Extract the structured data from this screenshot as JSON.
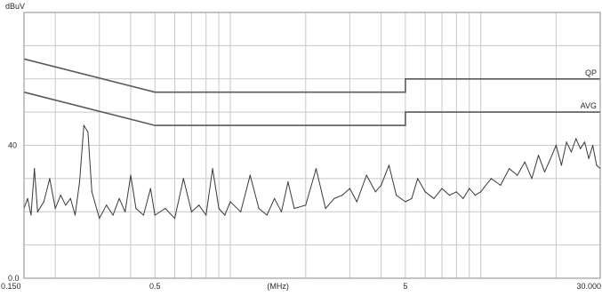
{
  "chart_data": {
    "type": "line",
    "title": "",
    "ylabel": "dBuV",
    "xlabel": "(MHz)",
    "x_scale": "log",
    "xlim": [
      0.15,
      30
    ],
    "ylim": [
      0,
      80
    ],
    "grid": true,
    "x_tick_labels": [
      {
        "x": 0.15,
        "label": "0.150"
      },
      {
        "x": 0.5,
        "label": "0.5"
      },
      {
        "x": 5,
        "label": "5"
      },
      {
        "x": 30,
        "label": "30.000"
      }
    ],
    "x_unit_label_position_mhz": 1.55,
    "y_tick_labels": [
      {
        "y": 0,
        "label": "0.0"
      },
      {
        "y": 40,
        "label": "40"
      }
    ],
    "limit_lines": [
      {
        "name": "QP",
        "points": [
          [
            0.15,
            66
          ],
          [
            0.5,
            56
          ],
          [
            5,
            56
          ],
          [
            5,
            60
          ],
          [
            30,
            60
          ]
        ]
      },
      {
        "name": "AVG",
        "points": [
          [
            0.15,
            56
          ],
          [
            0.5,
            46
          ],
          [
            5,
            46
          ],
          [
            5,
            50
          ],
          [
            30,
            50
          ]
        ]
      }
    ],
    "colors": {
      "limit": "#5a5a5a",
      "trace": "#3a3a3a",
      "grid": "#c8c8c8",
      "frame": "#8a8a8a"
    },
    "series": [
      {
        "values": [
          [
            0.15,
            21
          ],
          [
            0.155,
            24
          ],
          [
            0.16,
            19
          ],
          [
            0.165,
            33
          ],
          [
            0.17,
            20
          ],
          [
            0.18,
            23
          ],
          [
            0.19,
            30
          ],
          [
            0.2,
            21
          ],
          [
            0.21,
            25
          ],
          [
            0.22,
            22
          ],
          [
            0.23,
            24
          ],
          [
            0.24,
            19
          ],
          [
            0.25,
            29
          ],
          [
            0.26,
            46
          ],
          [
            0.27,
            44
          ],
          [
            0.28,
            26
          ],
          [
            0.3,
            18
          ],
          [
            0.32,
            22
          ],
          [
            0.34,
            19
          ],
          [
            0.36,
            24
          ],
          [
            0.38,
            20
          ],
          [
            0.4,
            31
          ],
          [
            0.42,
            21
          ],
          [
            0.45,
            19
          ],
          [
            0.48,
            27
          ],
          [
            0.5,
            19
          ],
          [
            0.55,
            21
          ],
          [
            0.6,
            18
          ],
          [
            0.65,
            30
          ],
          [
            0.7,
            20
          ],
          [
            0.75,
            22
          ],
          [
            0.8,
            19
          ],
          [
            0.85,
            33
          ],
          [
            0.9,
            21
          ],
          [
            0.95,
            19
          ],
          [
            1.0,
            23
          ],
          [
            1.1,
            20
          ],
          [
            1.2,
            31
          ],
          [
            1.3,
            21
          ],
          [
            1.4,
            19
          ],
          [
            1.5,
            24
          ],
          [
            1.6,
            20
          ],
          [
            1.7,
            29
          ],
          [
            1.8,
            21
          ],
          [
            2.0,
            22
          ],
          [
            2.2,
            33
          ],
          [
            2.4,
            21
          ],
          [
            2.6,
            24
          ],
          [
            2.8,
            25
          ],
          [
            3.0,
            27
          ],
          [
            3.2,
            23
          ],
          [
            3.5,
            31
          ],
          [
            3.8,
            26
          ],
          [
            4.0,
            28
          ],
          [
            4.3,
            34
          ],
          [
            4.6,
            25
          ],
          [
            5.0,
            23
          ],
          [
            5.3,
            24
          ],
          [
            5.6,
            30
          ],
          [
            6.0,
            26
          ],
          [
            6.5,
            24
          ],
          [
            7.0,
            27
          ],
          [
            7.5,
            25
          ],
          [
            8.0,
            26
          ],
          [
            8.5,
            24
          ],
          [
            9.0,
            27
          ],
          [
            9.5,
            25
          ],
          [
            10.0,
            26
          ],
          [
            11.0,
            30
          ],
          [
            12.0,
            28
          ],
          [
            13.0,
            33
          ],
          [
            14.0,
            31
          ],
          [
            15.0,
            35
          ],
          [
            16.0,
            30
          ],
          [
            17.0,
            37
          ],
          [
            18.0,
            32
          ],
          [
            19.0,
            36
          ],
          [
            20.0,
            40
          ],
          [
            21.0,
            34
          ],
          [
            22.0,
            41
          ],
          [
            23.0,
            38
          ],
          [
            24.0,
            42
          ],
          [
            25.0,
            39
          ],
          [
            26.0,
            41
          ],
          [
            27.0,
            36
          ],
          [
            28.0,
            40
          ],
          [
            29.0,
            34
          ],
          [
            30.0,
            33
          ]
        ]
      }
    ]
  }
}
